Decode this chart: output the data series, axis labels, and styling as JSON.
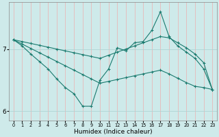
{
  "xlabel": "Humidex (Indice chaleur)",
  "x": [
    0,
    1,
    2,
    3,
    4,
    5,
    6,
    7,
    8,
    9,
    10,
    11,
    12,
    13,
    14,
    15,
    16,
    17,
    18,
    19,
    20,
    21,
    22,
    23
  ],
  "line_wavy": [
    7.15,
    7.05,
    6.92,
    6.8,
    6.68,
    6.52,
    6.38,
    6.28,
    6.08,
    6.08,
    6.5,
    6.68,
    7.02,
    6.97,
    7.1,
    7.12,
    7.3,
    7.6,
    7.2,
    7.05,
    6.95,
    6.85,
    6.68,
    6.35
  ],
  "line_straight_top": [
    7.15,
    7.12,
    7.09,
    7.06,
    7.03,
    7.0,
    6.97,
    6.94,
    6.91,
    6.88,
    6.85,
    6.9,
    6.95,
    7.0,
    7.05,
    7.1,
    7.15,
    7.2,
    7.18,
    7.1,
    7.02,
    6.92,
    6.78,
    6.35
  ],
  "line_straight_bot": [
    7.15,
    7.08,
    7.01,
    6.94,
    6.87,
    6.8,
    6.73,
    6.66,
    6.59,
    6.52,
    6.45,
    6.48,
    6.51,
    6.54,
    6.57,
    6.6,
    6.63,
    6.66,
    6.6,
    6.53,
    6.46,
    6.4,
    6.38,
    6.35
  ],
  "bg_color": "#ceeaea",
  "line_color": "#1a7a6e",
  "grid_color": "#aed4d4",
  "ylim": [
    5.85,
    7.75
  ],
  "yticks": [
    6,
    7
  ],
  "xlim": [
    -0.5,
    23.5
  ],
  "figw": 3.2,
  "figh": 2.0,
  "dpi": 100
}
